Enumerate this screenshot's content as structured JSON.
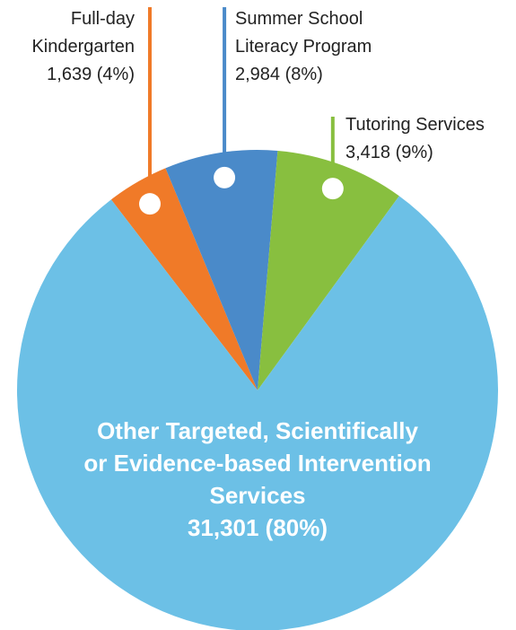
{
  "chart_data": {
    "type": "pie",
    "categories": [
      "Full-day Kindergarten",
      "Summer School Literacy Program",
      "Tutoring Services",
      "Other Targeted, Scientifically or Evidence-based Intervention Services"
    ],
    "values": [
      1639,
      2984,
      3418,
      31301
    ],
    "value_labels": [
      "1,639 (4%)",
      "2,984 (8%)",
      "3,418 (9%)",
      "31,301 (80%)"
    ],
    "colors": [
      "#f07a28",
      "#4a8ac9",
      "#88bf3f",
      "#6cc0e6"
    ]
  }
}
